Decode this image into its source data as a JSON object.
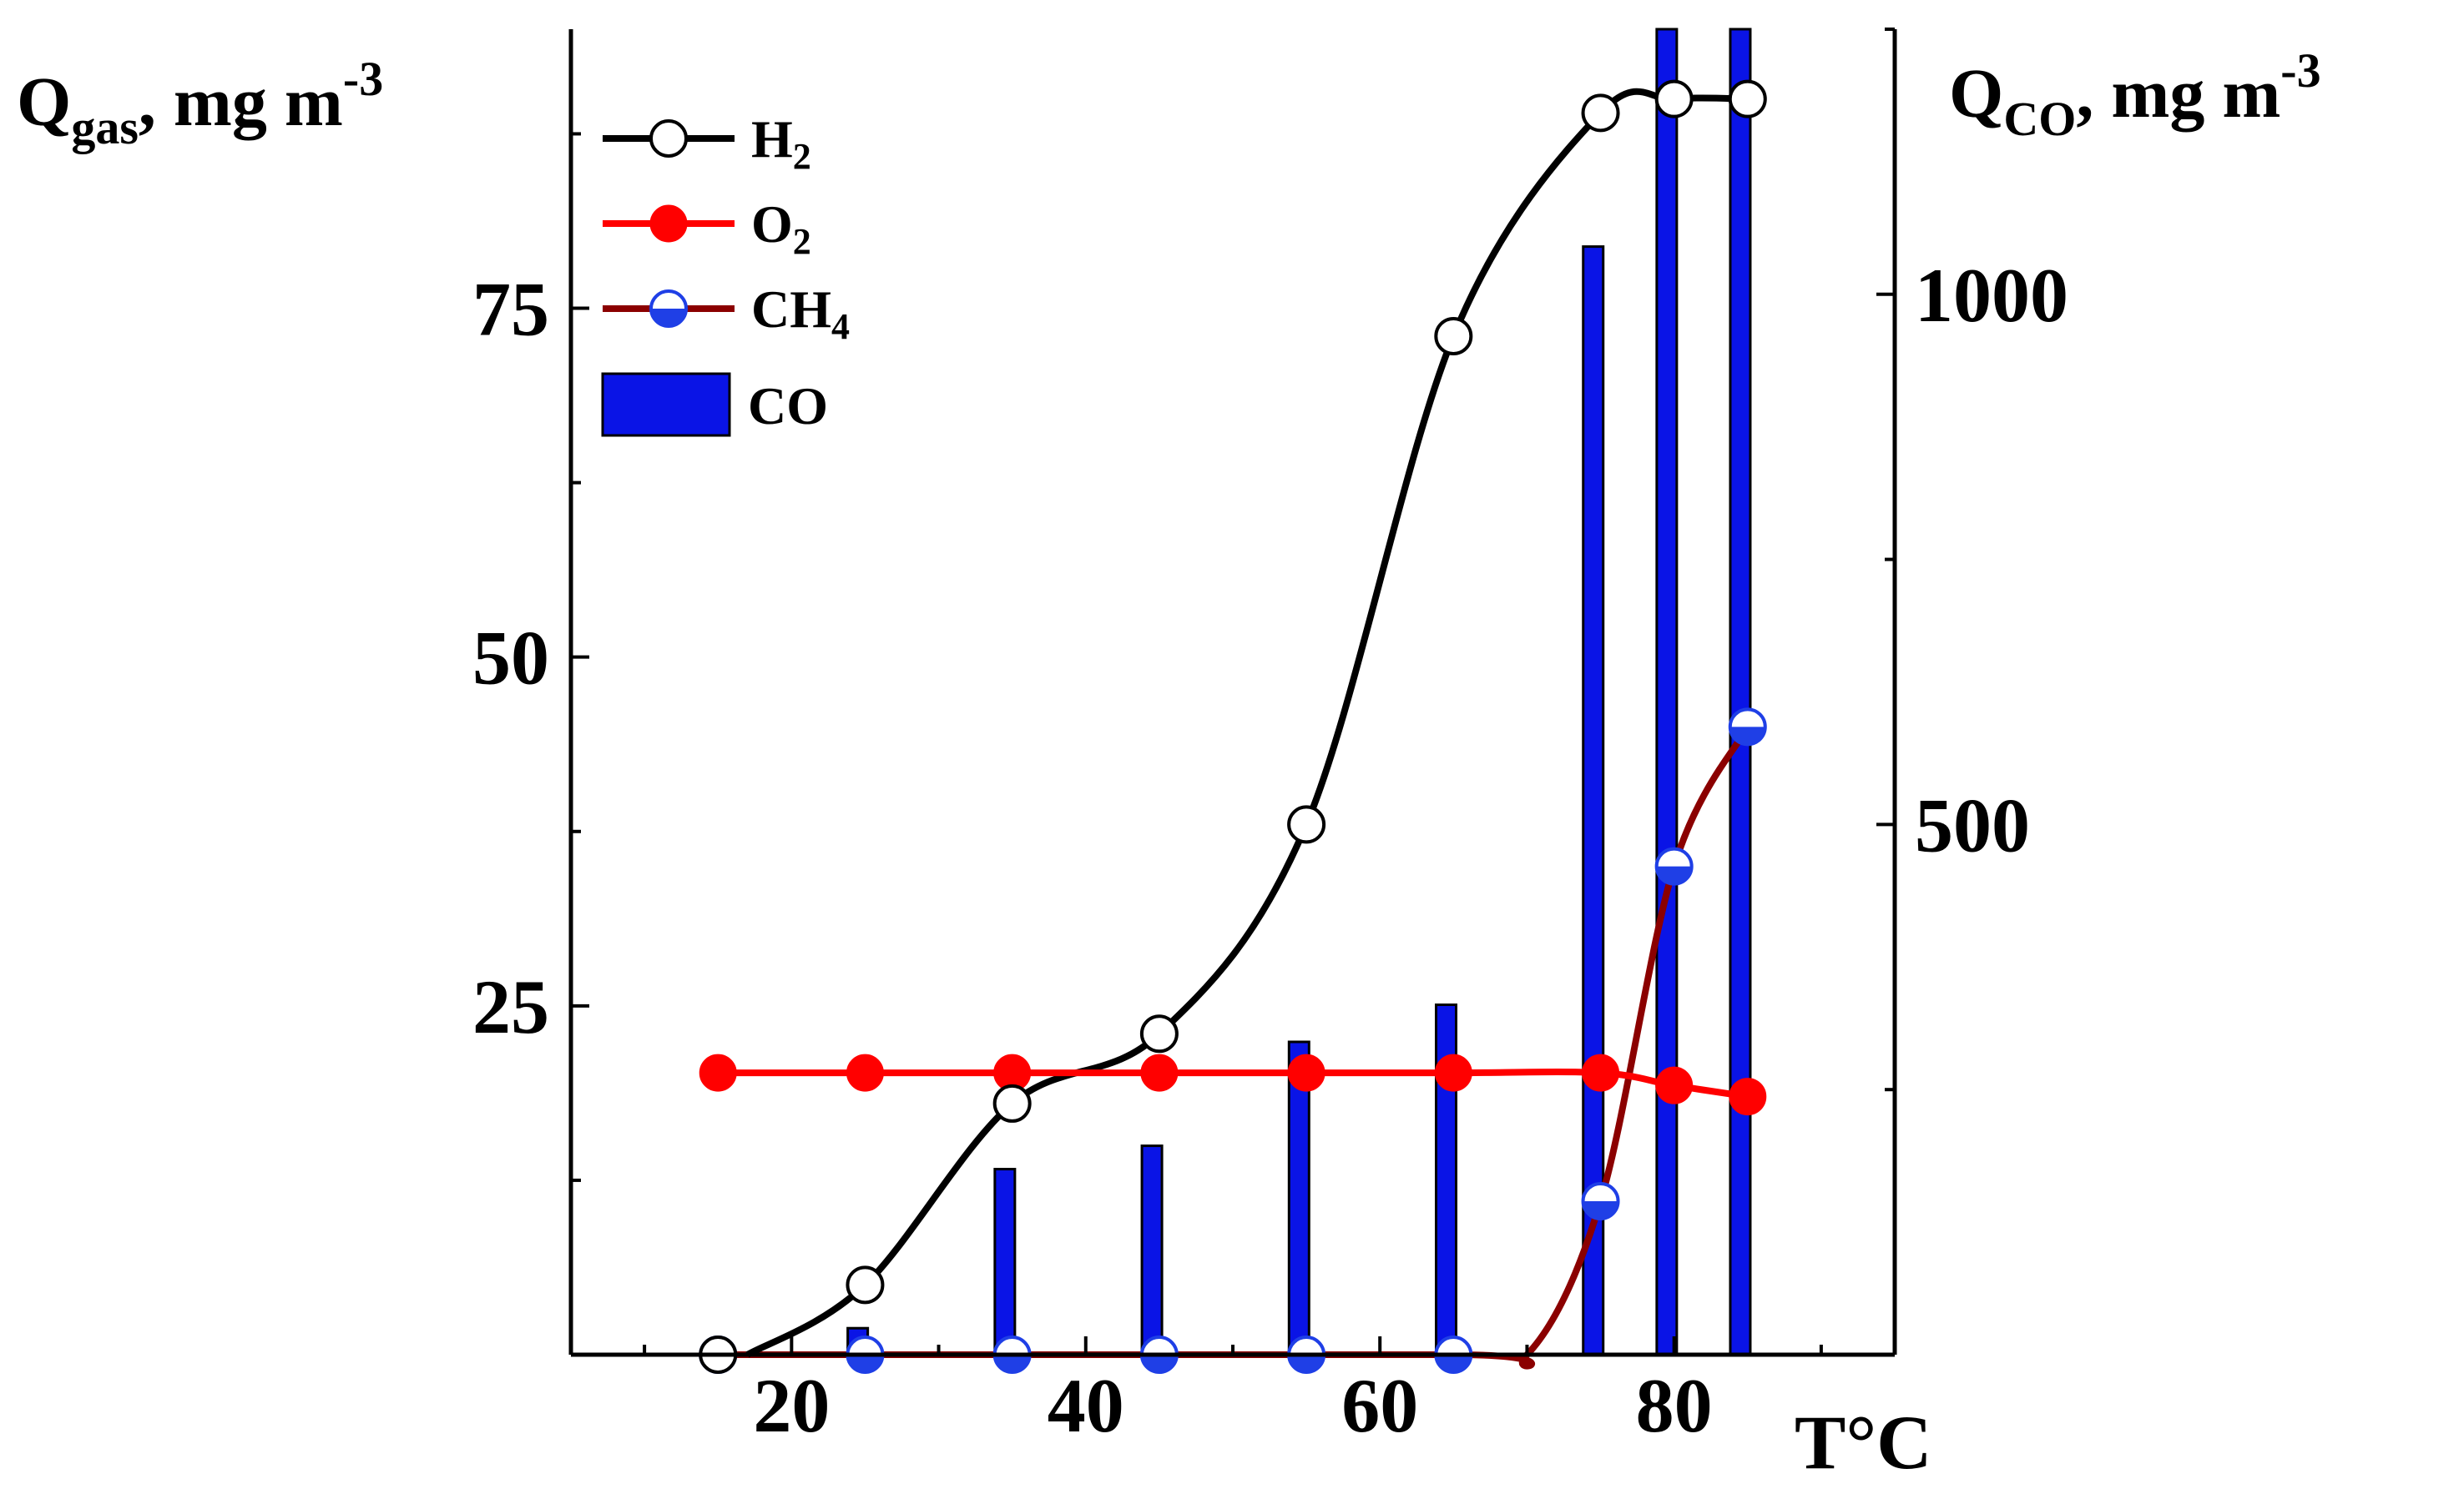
{
  "chart_data": {
    "type": "bar+line",
    "left_axis": {
      "label_main": "Q",
      "label_sub": "gas",
      "label_tail": ", mg m",
      "label_sup": "-3",
      "ylim": [
        0,
        95
      ],
      "ticks": [
        25,
        50,
        75
      ],
      "tick_labels": [
        "25",
        "50",
        "75"
      ],
      "minor_ticks": [
        12.5,
        37.5,
        62.5,
        87.5
      ]
    },
    "right_axis": {
      "label_main": "Q",
      "label_sub": "CO",
      "label_tail": ", mg m",
      "label_sup": "-3",
      "ylim": [
        0,
        1250
      ],
      "ticks": [
        500,
        1000
      ],
      "tick_labels": [
        "500",
        "1000"
      ],
      "minor_ticks": [
        250,
        750,
        1250
      ]
    },
    "x_axis": {
      "label": "T°C",
      "xlim": [
        5,
        95
      ],
      "ticks": [
        20,
        40,
        60,
        80
      ],
      "tick_labels": [
        "20",
        "40",
        "60",
        "80"
      ],
      "minor_ticks": [
        10,
        30,
        50,
        70,
        90
      ]
    },
    "series": [
      {
        "name": "H",
        "sub": "2",
        "axis": "left",
        "color": "#000000",
        "marker": "open-circle",
        "x": [
          15,
          25,
          35,
          45,
          55,
          65,
          75,
          80,
          85
        ],
        "y": [
          0,
          5,
          18,
          23,
          38,
          73,
          89,
          90,
          90
        ]
      },
      {
        "name": "O",
        "sub": "2",
        "axis": "left",
        "color": "#ff0000",
        "marker": "filled-circle",
        "x": [
          15,
          25,
          35,
          45,
          55,
          65,
          75,
          80,
          85
        ],
        "y": [
          20.2,
          20.2,
          20.2,
          20.2,
          20.2,
          20.2,
          20.2,
          19.3,
          18.5
        ]
      },
      {
        "name": "CH",
        "sub": "4",
        "axis": "left",
        "color": "#8b0000",
        "marker": "half-blue-circle",
        "x": [
          15,
          25,
          35,
          45,
          55,
          65,
          75,
          80,
          85
        ],
        "y": [
          0,
          0,
          0,
          0,
          0,
          0,
          11,
          35,
          45
        ]
      },
      {
        "name": "CO",
        "sub": "",
        "axis": "right",
        "type": "bar",
        "color": "#0a14e6",
        "x": [
          24.5,
          34.5,
          44.5,
          54.5,
          64.5,
          74.5,
          79.5,
          84.5
        ],
        "values": [
          25,
          175,
          197,
          295,
          330,
          1045,
          1250,
          1250
        ]
      }
    ],
    "legend_position": "top-left"
  }
}
